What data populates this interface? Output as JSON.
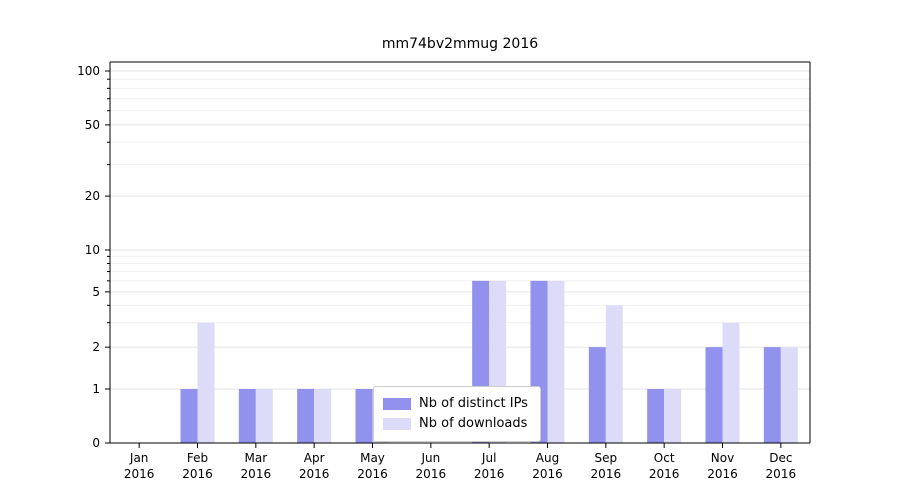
{
  "title": "mm74bv2mmug 2016",
  "chart_data": {
    "type": "bar",
    "title": "mm74bv2mmug 2016",
    "categories": [
      "Jan",
      "Feb",
      "Mar",
      "Apr",
      "May",
      "Jun",
      "Jul",
      "Aug",
      "Sep",
      "Oct",
      "Nov",
      "Dec"
    ],
    "year_label": "2016",
    "series": [
      {
        "name": "Nb of distinct IPs",
        "color": "#9191ee",
        "values": [
          0,
          1,
          1,
          1,
          1,
          0,
          6,
          6,
          2,
          1,
          2,
          2
        ]
      },
      {
        "name": "Nb of downloads",
        "color": "#dcdcf8",
        "values": [
          0,
          3,
          1,
          1,
          1,
          0,
          6,
          6,
          4,
          1,
          3,
          2
        ]
      }
    ],
    "yticks": [
      0,
      1,
      2,
      5,
      10,
      20,
      50,
      100
    ],
    "yscale": "symlog",
    "ylim": [
      0,
      100
    ],
    "grid": "horizontal major+minor, light gray",
    "legend_position": "inside lower-center"
  },
  "colors": {
    "axis": "#000000",
    "major_grid": "#e4e4e4",
    "minor_grid": "#f0f0f0",
    "text": "#000000",
    "background": "#ffffff"
  }
}
